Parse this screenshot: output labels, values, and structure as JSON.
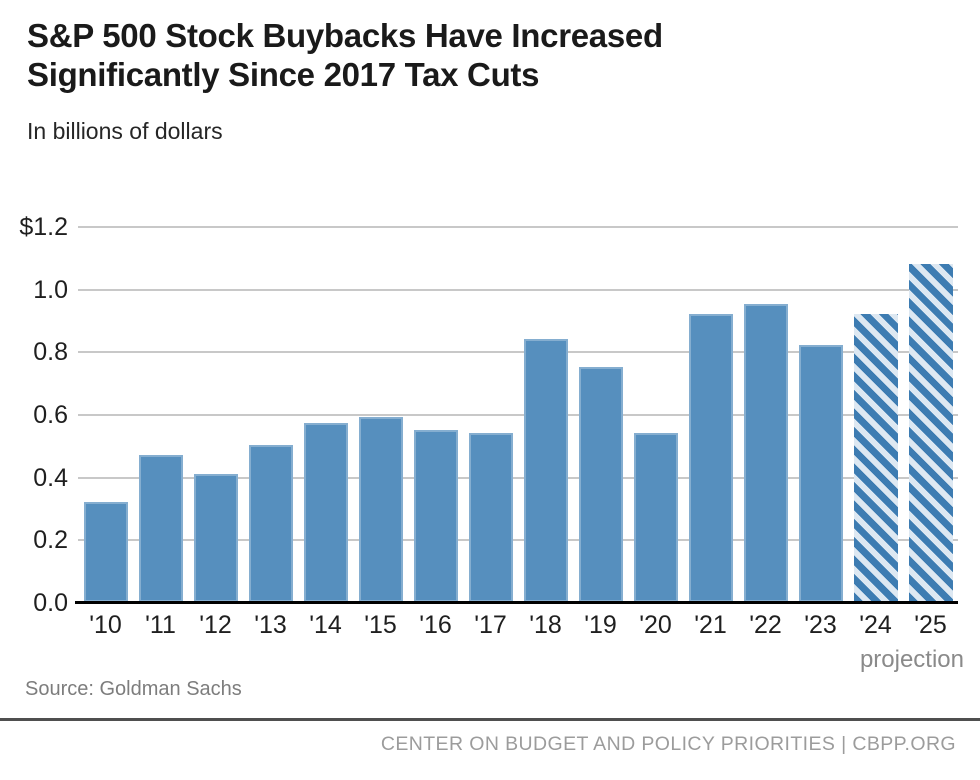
{
  "page": {
    "title": "S&P 500 Stock Buybacks Have Increased Significantly Since 2017 Tax Cuts",
    "subtitle": "In billions of dollars"
  },
  "chart_data": {
    "type": "bar",
    "title": "S&P 500 Stock Buybacks Have Increased Significantly Since 2017 Tax Cuts",
    "units_label": "In billions of dollars",
    "categories": [
      "'10",
      "'11",
      "'12",
      "'13",
      "'14",
      "'15",
      "'16",
      "'17",
      "'18",
      "'19",
      "'20",
      "'21",
      "'22",
      "'23",
      "'24",
      "'25"
    ],
    "values": [
      0.32,
      0.47,
      0.41,
      0.5,
      0.57,
      0.59,
      0.55,
      0.54,
      0.84,
      0.75,
      0.54,
      0.92,
      0.95,
      0.82,
      0.92,
      1.08
    ],
    "projected": [
      false,
      false,
      false,
      false,
      false,
      false,
      false,
      false,
      false,
      false,
      false,
      false,
      false,
      false,
      true,
      true
    ],
    "projection_label": "projection",
    "xlabel": "",
    "ylabel": "",
    "ylim": [
      0,
      1.2
    ],
    "yticks": [
      {
        "label": "$1.2",
        "value": 1.2
      },
      {
        "label": "1.0",
        "value": 1.0
      },
      {
        "label": "0.8",
        "value": 0.8
      },
      {
        "label": "0.6",
        "value": 0.6
      },
      {
        "label": "0.4",
        "value": 0.4
      },
      {
        "label": "0.2",
        "value": 0.2
      },
      {
        "label": "0.0",
        "value": 0.0
      }
    ],
    "grid": "horizontal",
    "legend_position": "none"
  },
  "colors": {
    "bar": "#568fbe",
    "hatch_stripe": "#3d7cb2",
    "hatch_bg": "#dde8f2",
    "gridline": "#c8c8c8",
    "baseline": "#000000",
    "projection_text": "#8a8a8a",
    "source_text": "#7d7d7d",
    "footer_text": "#9c9c9c",
    "footer_rule": "#4f4f4f"
  },
  "source": {
    "text": "Source: Goldman Sachs"
  },
  "footer": {
    "text": "CENTER ON BUDGET AND POLICY PRIORITIES | CBPP.ORG"
  }
}
